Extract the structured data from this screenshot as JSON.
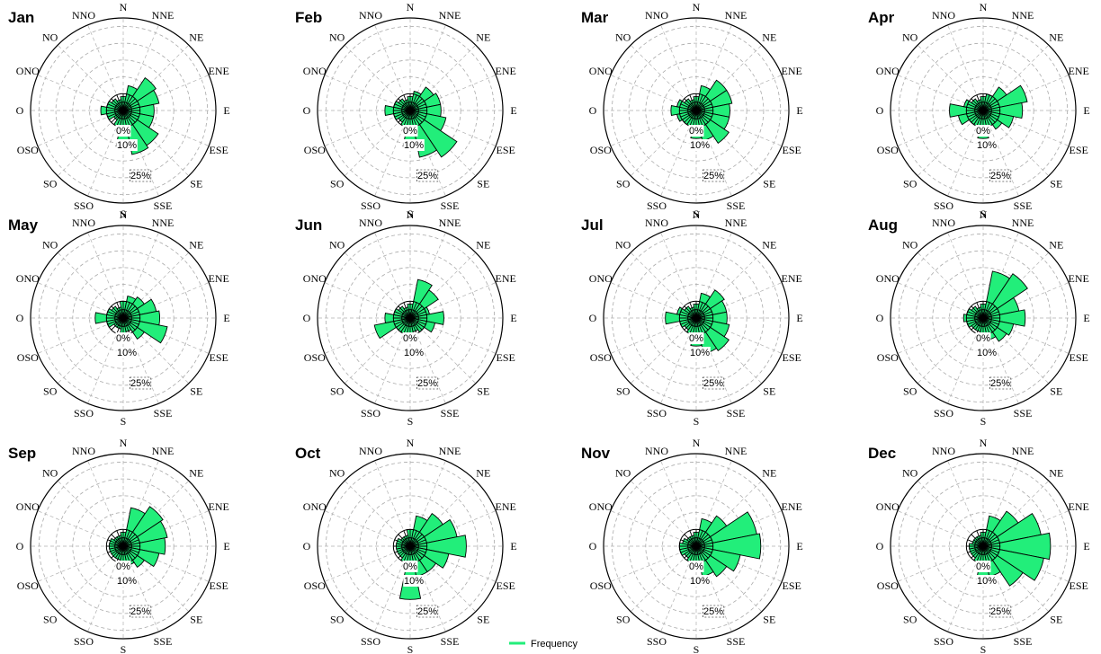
{
  "chart_data": {
    "type": "polar-bar",
    "legend": {
      "label": "Frequency",
      "color": "#22ee7a",
      "position": "bottom-center"
    },
    "directions": [
      "N",
      "NNE",
      "NE",
      "ENE",
      "E",
      "ESE",
      "SE",
      "SSE",
      "S",
      "SSO",
      "SO",
      "OSO",
      "O",
      "ONO",
      "NO",
      "NNO"
    ],
    "rings": [
      {
        "value": 0,
        "label": "0%"
      },
      {
        "value": 10,
        "label": "10%"
      },
      {
        "value": 25,
        "label": "25%"
      }
    ],
    "r_max": 33,
    "bar_color": "#22ee7a",
    "panels": [
      {
        "title": "Jan",
        "values": [
          5,
          9,
          14,
          13,
          11,
          11,
          15,
          16,
          13,
          6,
          4,
          6,
          8,
          6,
          5,
          4
        ]
      },
      {
        "title": "Feb",
        "values": [
          5,
          7,
          10,
          11,
          11,
          13,
          20,
          17,
          13,
          6,
          5,
          6,
          9,
          6,
          5,
          4
        ]
      },
      {
        "title": "Mar",
        "values": [
          5,
          9,
          13,
          13,
          12,
          12,
          14,
          11,
          10,
          6,
          6,
          7,
          9,
          7,
          5,
          4
        ]
      },
      {
        "title": "Apr",
        "values": [
          5,
          6,
          10,
          16,
          14,
          11,
          8,
          6,
          10,
          6,
          6,
          9,
          12,
          7,
          5,
          4
        ]
      },
      {
        "title": "May",
        "values": [
          6,
          8,
          9,
          12,
          13,
          16,
          9,
          5,
          6,
          4,
          4,
          6,
          10,
          6,
          5,
          4
        ]
      },
      {
        "title": "Jun",
        "values": [
          5,
          14,
          12,
          7,
          12,
          9,
          6,
          5,
          9,
          6,
          6,
          13,
          9,
          6,
          5,
          4
        ]
      },
      {
        "title": "Jul",
        "values": [
          5,
          9,
          12,
          11,
          11,
          12,
          14,
          13,
          10,
          6,
          5,
          6,
          11,
          7,
          5,
          4
        ]
      },
      {
        "title": "Aug",
        "values": [
          5,
          17,
          19,
          13,
          15,
          11,
          10,
          8,
          7,
          5,
          5,
          6,
          7,
          6,
          5,
          4
        ]
      },
      {
        "title": "Sep",
        "values": [
          5,
          14,
          17,
          16,
          15,
          13,
          9,
          7,
          8,
          5,
          5,
          5,
          5,
          5,
          4,
          4
        ]
      },
      {
        "title": "Oct",
        "values": [
          6,
          11,
          14,
          17,
          20,
          14,
          11,
          11,
          19,
          6,
          5,
          5,
          5,
          5,
          4,
          4
        ]
      },
      {
        "title": "Nov",
        "values": [
          5,
          10,
          13,
          22,
          23,
          16,
          13,
          11,
          8,
          6,
          5,
          6,
          6,
          5,
          4,
          4
        ]
      },
      {
        "title": "Dec",
        "values": [
          5,
          11,
          15,
          21,
          24,
          22,
          17,
          11,
          12,
          6,
          5,
          5,
          5,
          4,
          4,
          4
        ]
      }
    ]
  }
}
